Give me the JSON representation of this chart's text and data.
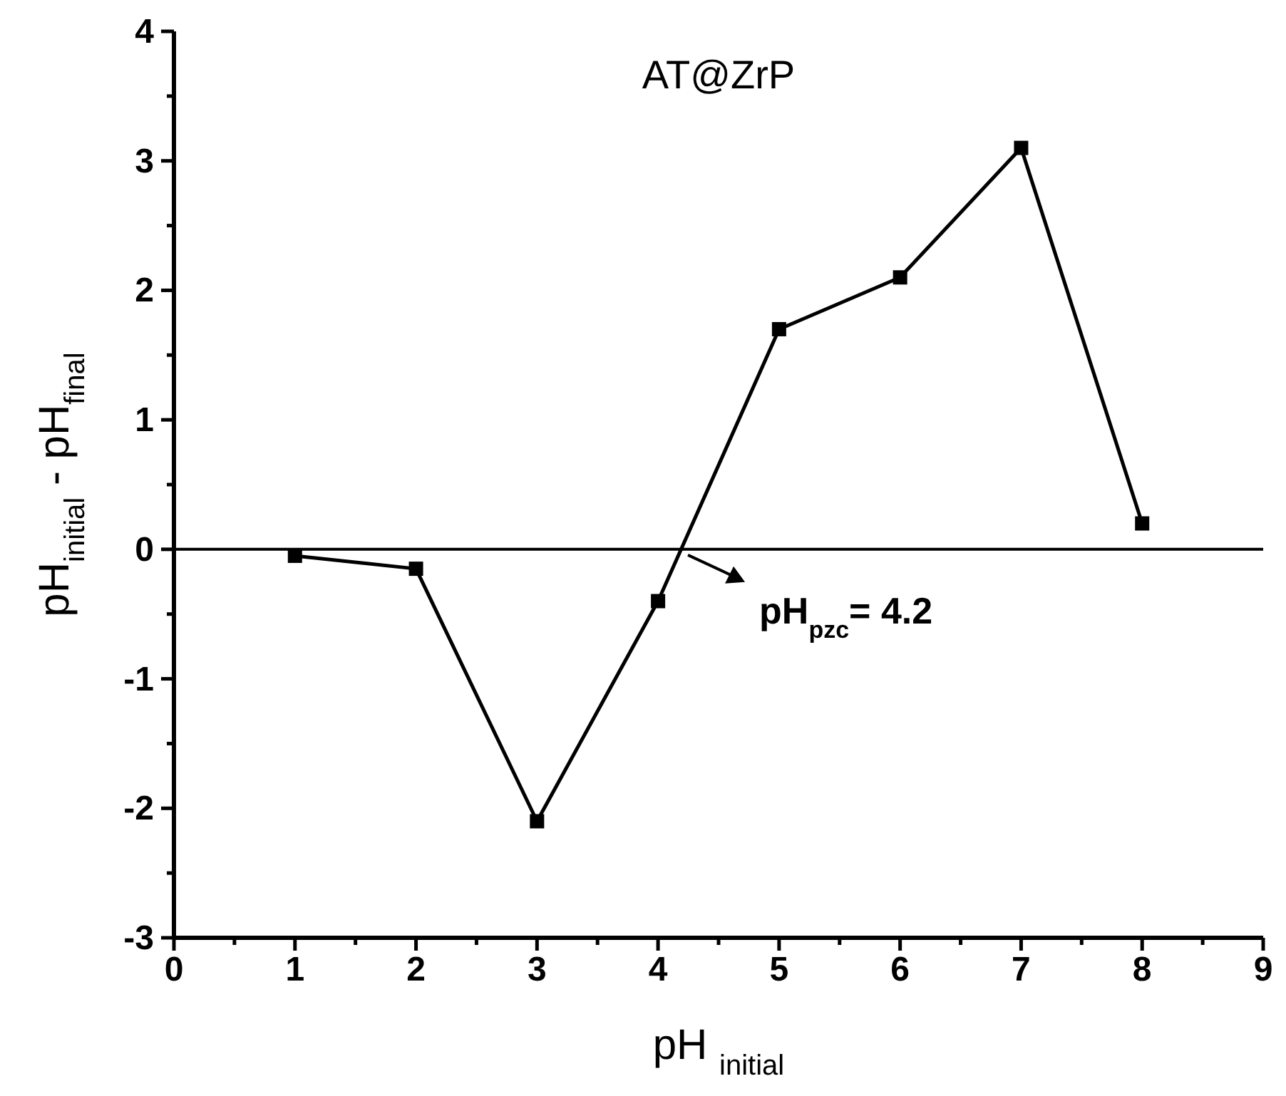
{
  "chart_data": {
    "type": "line",
    "title": "AT@ZrP",
    "xlabel": "pH $_{initial}$",
    "ylabel": "pH$_{initial}$ - pH$_{final}$",
    "x": [
      1,
      2,
      3,
      4,
      5,
      6,
      7,
      8
    ],
    "series": [
      {
        "color": "#000000",
        "values": [
          -0.05,
          -0.15,
          -2.1,
          -0.4,
          1.7,
          2.1,
          3.1,
          0.2
        ]
      }
    ],
    "xlim": [
      0,
      9
    ],
    "xticks": [
      0,
      {
        "value": 0.5,
        "label": null
      },
      1,
      {
        "value": 1.5,
        "label": null
      },
      2,
      {
        "value": 2.5,
        "label": null
      },
      3,
      {
        "value": 3.5,
        "label": null
      },
      4,
      {
        "value": 4.5,
        "label": null
      },
      5,
      {
        "value": 5.5,
        "label": null
      },
      6,
      {
        "value": 6.5,
        "label": null
      },
      7,
      {
        "value": 7.5,
        "label": null
      },
      8,
      {
        "value": 8.5,
        "label": null
      },
      9
    ],
    "ylim": [
      -3,
      4
    ],
    "yticks": [
      -3,
      {
        "value": -2.5,
        "label": null
      },
      -2,
      {
        "value": -1.5,
        "label": null
      },
      -1,
      {
        "value": -0.5,
        "label": null
      },
      0,
      {
        "value": 0.5,
        "label": null
      },
      1,
      {
        "value": 1.5,
        "label": null
      },
      2,
      {
        "value": 2.5,
        "label": null
      },
      3,
      {
        "value": 3.5,
        "label": null
      },
      4
    ],
    "ref_lines": [
      {
        "axis": "y",
        "value": 0,
        "color": "#000000"
      }
    ],
    "annotations": [
      {
        "text": "pH$_{pzc}$= 4.2",
        "x": 4.2,
        "y": 0
      }
    ],
    "marker": "square",
    "line_style": "solid",
    "grid": false
  }
}
